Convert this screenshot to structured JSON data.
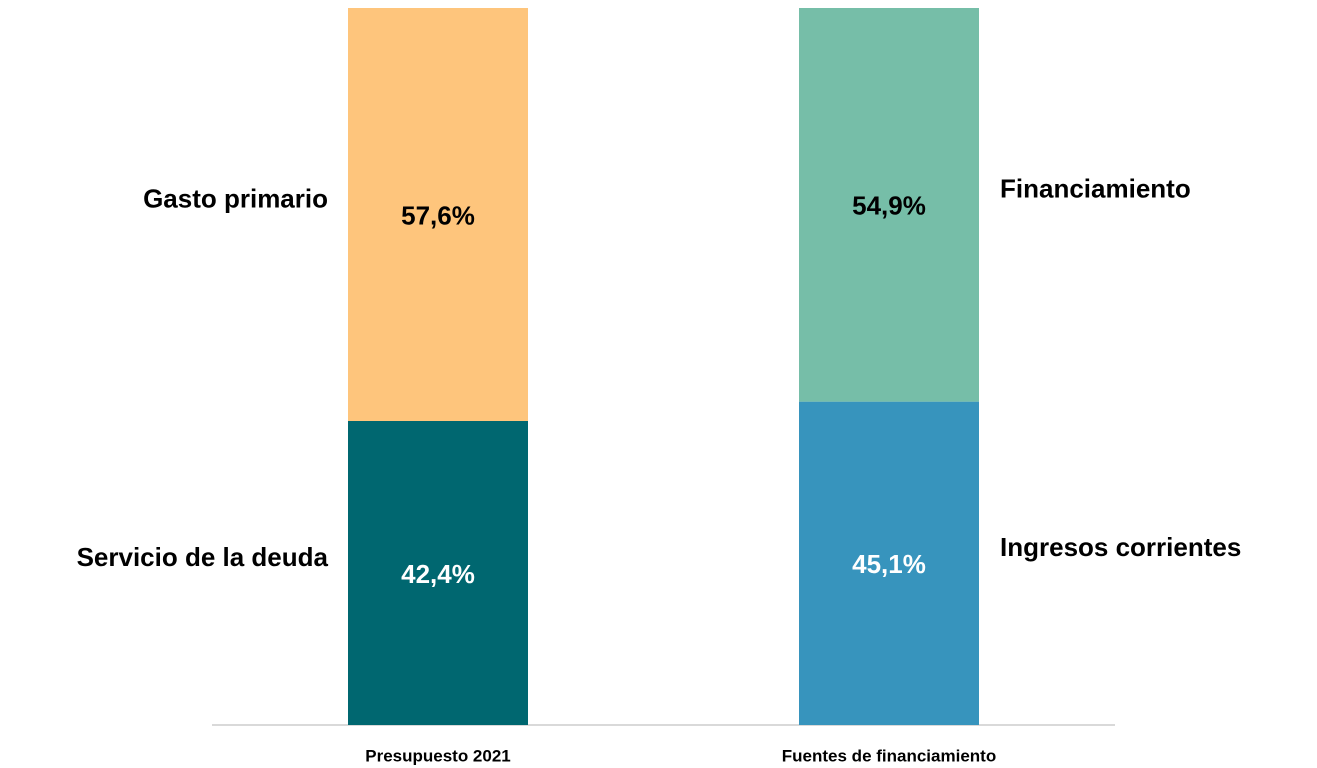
{
  "chart_data": {
    "type": "stacked_bar",
    "categories": [
      "Presupuesto 2021",
      "Fuentes de financiamiento"
    ],
    "ylim": [
      0,
      100
    ],
    "bars": [
      {
        "segments": [
          {
            "name": "Servicio de la deuda",
            "color": "#006770",
            "label_color": "#ffffff",
            "value": 42.4,
            "value_label": "42,4%"
          },
          {
            "name": "Gasto primario",
            "color": "#fec57c",
            "label_color": "#000000",
            "value": 57.6,
            "value_label": "57,6%"
          }
        ]
      },
      {
        "segments": [
          {
            "name": "Ingresos corrientes",
            "color": "#3794bd",
            "label_color": "#ffffff",
            "value": 45.1,
            "value_label": "45,1%"
          },
          {
            "name": "Financiamiento",
            "color": "#76bea8",
            "label_color": "#000000",
            "value": 54.9,
            "value_label": "54,9%"
          }
        ]
      }
    ]
  }
}
